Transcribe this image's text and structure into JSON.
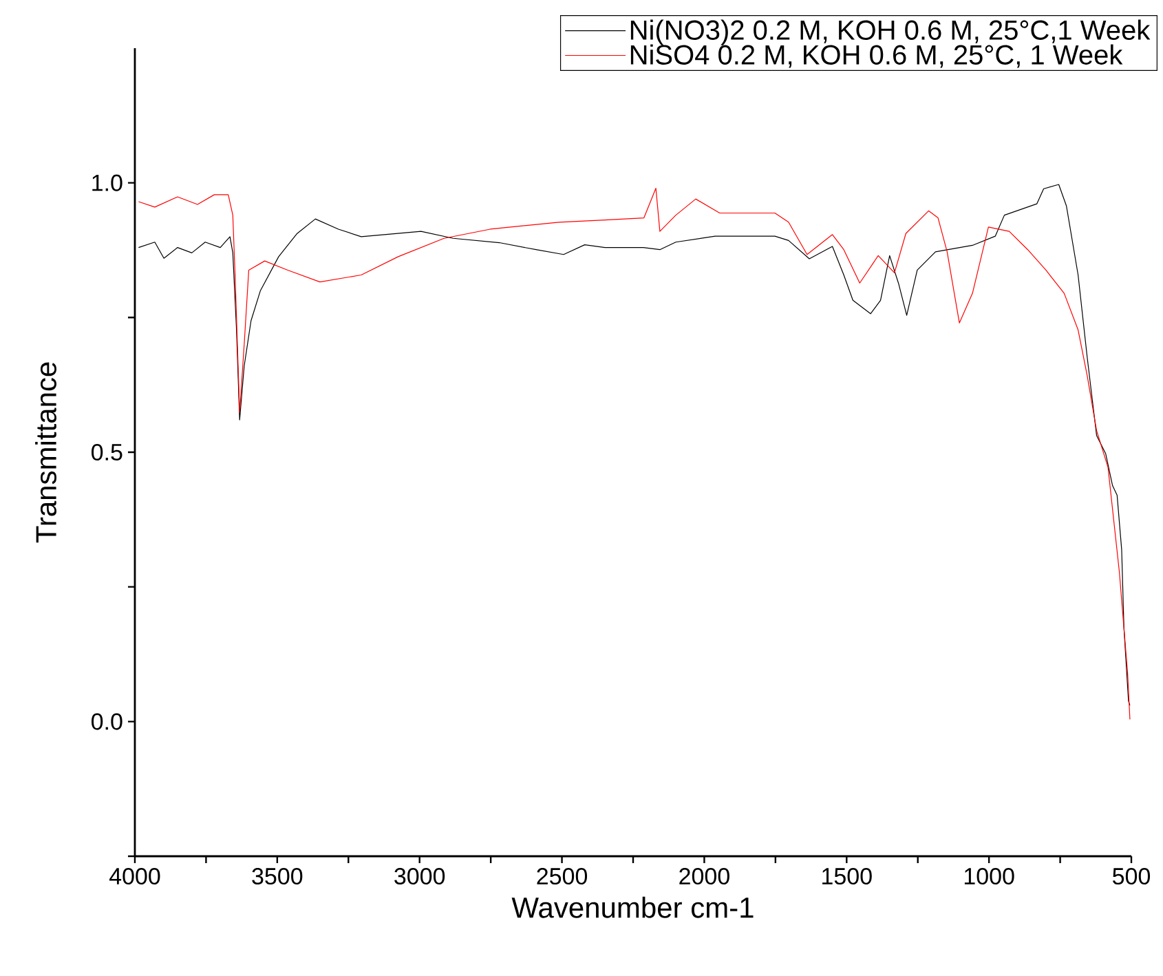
{
  "chart_data": {
    "type": "line",
    "xlabel": "Wavenumber cm-1",
    "ylabel": "Transmittance",
    "xlim": [
      4000,
      500
    ],
    "ylim": [
      -0.25,
      1.25
    ],
    "xticks": [
      4000,
      {
        "value": 3750,
        "label": null
      },
      3500,
      {
        "value": 3250,
        "label": null
      },
      3000,
      {
        "value": 2750,
        "label": null
      },
      2500,
      {
        "value": 2250,
        "label": null
      },
      2000,
      {
        "value": 1750,
        "label": null
      },
      1500,
      {
        "value": 1250,
        "label": null
      },
      1000,
      {
        "value": 750,
        "label": null
      },
      500
    ],
    "yticks": [
      {
        "value": -0.25,
        "label": null
      },
      {
        "value": 0,
        "label": "0.0"
      },
      {
        "value": 0.25,
        "label": null
      },
      {
        "value": 0.5,
        "label": "0.5"
      },
      {
        "value": 0.75,
        "label": null
      },
      {
        "value": 1.0,
        "label": "1.0"
      }
    ],
    "legend": "top right",
    "grid": false,
    "marker": "none",
    "line_style": "solid",
    "series": [
      {
        "name": "Ni(NO3)2 0.2 M, KOH 0.6 M, 25°C,1 Week",
        "color": "#000000",
        "x": [
          3987,
          3930,
          3898,
          3850,
          3800,
          3753,
          3700,
          3666,
          3656,
          3643,
          3632,
          3616,
          3592,
          3559,
          3495,
          3430,
          3366,
          3285,
          3205,
          2995,
          2882,
          2720,
          2591,
          2494,
          2420,
          2349,
          2214,
          2156,
          2100,
          1962,
          1752,
          1704,
          1631,
          1550,
          1510,
          1478,
          1416,
          1381,
          1349,
          1317,
          1289,
          1252,
          1188,
          1058,
          978,
          946,
          832,
          808,
          755,
          728,
          687,
          655,
          622,
          590,
          566,
          550,
          534,
          526,
          510,
          505
        ],
        "values": [
          0.88,
          0.89,
          0.86,
          0.88,
          0.87,
          0.89,
          0.88,
          0.9,
          0.87,
          0.727,
          0.56,
          0.66,
          0.744,
          0.8,
          0.863,
          0.906,
          0.933,
          0.914,
          0.9,
          0.91,
          0.897,
          0.889,
          0.876,
          0.867,
          0.885,
          0.88,
          0.88,
          0.876,
          0.89,
          0.901,
          0.901,
          0.893,
          0.859,
          0.882,
          0.829,
          0.782,
          0.757,
          0.782,
          0.865,
          0.812,
          0.754,
          0.838,
          0.872,
          0.884,
          0.901,
          0.94,
          0.961,
          0.989,
          0.997,
          0.957,
          0.829,
          0.676,
          0.531,
          0.497,
          0.438,
          0.42,
          0.319,
          0.174,
          0.038,
          0.03
        ]
      },
      {
        "name": "NiSO4 0.2 M, KOH 0.6 M, 25°C, 1 Week",
        "color": "#ff0000",
        "x": [
          3987,
          3930,
          3850,
          3780,
          3721,
          3672,
          3656,
          3648,
          3632,
          3616,
          3600,
          3544,
          3463,
          3350,
          3205,
          3075,
          2914,
          2752,
          2510,
          2349,
          2212,
          2170,
          2156,
          2100,
          2030,
          1946,
          1752,
          1704,
          1639,
          1550,
          1510,
          1454,
          1389,
          1332,
          1292,
          1212,
          1179,
          1147,
          1104,
          1058,
          1002,
          929,
          864,
          800,
          736,
          687,
          655,
          622,
          582,
          542,
          513,
          505
        ],
        "values": [
          0.965,
          0.955,
          0.974,
          0.96,
          0.978,
          0.978,
          0.94,
          0.829,
          0.574,
          0.7,
          0.838,
          0.855,
          0.838,
          0.816,
          0.829,
          0.863,
          0.897,
          0.914,
          0.927,
          0.931,
          0.935,
          0.99,
          0.91,
          0.94,
          0.97,
          0.944,
          0.944,
          0.927,
          0.867,
          0.904,
          0.876,
          0.814,
          0.865,
          0.833,
          0.906,
          0.948,
          0.935,
          0.872,
          0.74,
          0.795,
          0.918,
          0.91,
          0.876,
          0.838,
          0.795,
          0.727,
          0.642,
          0.54,
          0.472,
          0.277,
          0.089,
          0.004
        ]
      }
    ]
  }
}
